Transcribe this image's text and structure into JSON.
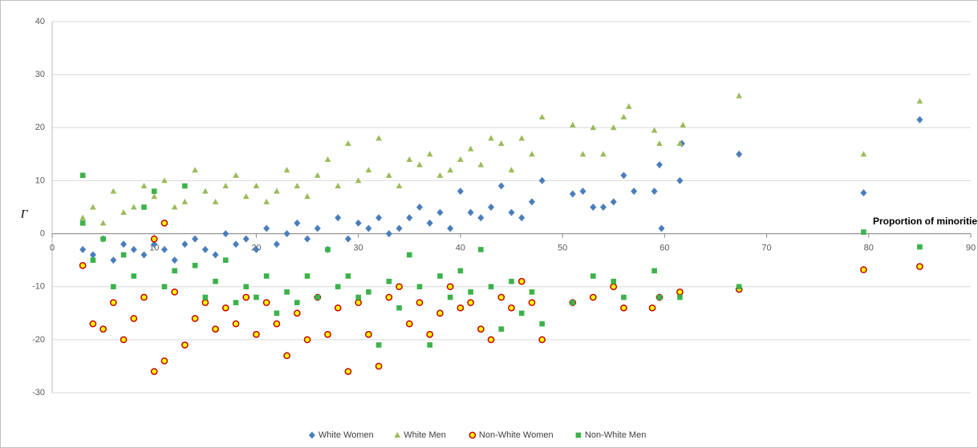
{
  "chart_data": {
    "type": "scatter",
    "y_label": "Γ",
    "x_label": "Proportion of minoritie",
    "xlim": [
      0,
      90
    ],
    "ylim": [
      -30,
      40
    ],
    "xticks": [
      0,
      10,
      20,
      30,
      40,
      50,
      60,
      70,
      80,
      90
    ],
    "yticks": [
      -30,
      -20,
      -10,
      0,
      10,
      20,
      30,
      40
    ],
    "grid": true,
    "legend": "bottom",
    "series": [
      {
        "name": "White Women",
        "color": "#4a7ebb",
        "marker": "diamond",
        "x": [
          3,
          4,
          5,
          6,
          7,
          8,
          9,
          10,
          11,
          12,
          13,
          14,
          15,
          16,
          17,
          18,
          19,
          20,
          21,
          22,
          23,
          24,
          25,
          26,
          27,
          28,
          29,
          30,
          31,
          32,
          33,
          34,
          35,
          36,
          37,
          38,
          39,
          40,
          41,
          42,
          43,
          44,
          45,
          46,
          47,
          48,
          51,
          52,
          53,
          54,
          55,
          56,
          57,
          59,
          59.5,
          59.7,
          61.5,
          61.7,
          67.3,
          79.5,
          85
        ],
        "values": [
          -3,
          -4,
          -1,
          -5,
          -2,
          -3,
          -4,
          -2,
          -3,
          -5,
          -2,
          -1,
          -3,
          -4,
          0,
          -2,
          -1,
          -3,
          1,
          -2,
          0,
          2,
          -1,
          1,
          -3,
          3,
          -1,
          2,
          1,
          3,
          0,
          1,
          3,
          5,
          2,
          4,
          1,
          8,
          4,
          3,
          5,
          9,
          4,
          3,
          6,
          10,
          7.5,
          8,
          5,
          5,
          6,
          11,
          8,
          8,
          13,
          1,
          10,
          17,
          15,
          7.7,
          21.5
        ]
      },
      {
        "name": "White Men",
        "color": "#9bbb59",
        "marker": "triangle",
        "x": [
          3,
          4,
          5,
          6,
          7,
          8,
          9,
          10,
          11,
          12,
          13,
          14,
          15,
          16,
          17,
          18,
          19,
          20,
          21,
          22,
          23,
          24,
          25,
          26,
          27,
          28,
          29,
          30,
          31,
          32,
          33,
          34,
          35,
          36,
          37,
          38,
          39,
          40,
          41,
          42,
          43,
          44,
          45,
          46,
          47,
          48,
          51,
          52,
          53,
          54,
          55,
          56,
          56.5,
          59,
          59.5,
          61.5,
          61.8,
          67.3,
          79.5,
          85
        ],
        "values": [
          3,
          5,
          2,
          8,
          4,
          5,
          9,
          7,
          10,
          5,
          6,
          12,
          8,
          6,
          9,
          11,
          7,
          9,
          6,
          8,
          12,
          9,
          7,
          11,
          14,
          9,
          17,
          10,
          12,
          18,
          11,
          9,
          14,
          13,
          15,
          11,
          12,
          14,
          16,
          13,
          18,
          17,
          12,
          18,
          15,
          22,
          20.5,
          15,
          20,
          15,
          20,
          22,
          24,
          19.5,
          17,
          17,
          20.5,
          26,
          15,
          25
        ]
      },
      {
        "name": "Non-White Women",
        "color": "#ffff00",
        "stroke": "#c00000",
        "marker": "circle",
        "x": [
          3,
          4,
          5,
          6,
          7,
          8,
          9,
          10,
          10,
          11,
          11,
          12,
          13,
          14,
          15,
          16,
          17,
          18,
          19,
          20,
          21,
          22,
          23,
          24,
          25,
          26,
          27,
          28,
          29,
          30,
          31,
          32,
          33,
          34,
          35,
          36,
          37,
          38,
          39,
          40,
          41,
          42,
          43,
          44,
          45,
          46,
          47,
          48,
          51,
          53,
          55,
          56,
          58.8,
          59.5,
          61.5,
          67.3,
          79.5,
          85
        ],
        "values": [
          -6,
          -17,
          -18,
          -13,
          -20,
          -16,
          -12,
          -26,
          -1,
          -24,
          2,
          -11,
          -21,
          -16,
          -13,
          -18,
          -14,
          -17,
          -12,
          -19,
          -13,
          -17,
          -23,
          -15,
          -20,
          -12,
          -19,
          -14,
          -26,
          -13,
          -19,
          -25,
          -12,
          -10,
          -17,
          -13,
          -19,
          -15,
          -10,
          -14,
          -13,
          -18,
          -20,
          -12,
          -14,
          -9,
          -13,
          -20,
          -13,
          -12,
          -10,
          -14,
          -14,
          -12,
          -11,
          -10.5,
          -6.8,
          -6.2
        ]
      },
      {
        "name": "Non-White Men",
        "color": "#3cb34a",
        "marker": "square",
        "x": [
          3,
          3,
          4,
          5,
          6,
          7,
          8,
          9,
          10,
          11,
          12,
          13,
          14,
          15,
          16,
          17,
          18,
          19,
          20,
          21,
          22,
          23,
          24,
          25,
          26,
          27,
          28,
          29,
          30,
          31,
          32,
          33,
          34,
          35,
          36,
          37,
          38,
          39,
          40,
          41,
          42,
          43,
          44,
          45,
          46,
          47,
          48,
          51,
          53,
          55,
          56,
          59,
          59.5,
          61.5,
          67.3,
          79.5,
          85
        ],
        "values": [
          11,
          2,
          -5,
          -1,
          -10,
          -4,
          -8,
          5,
          8,
          -10,
          -7,
          9,
          -6,
          -12,
          -9,
          -5,
          -13,
          -10,
          -12,
          -8,
          -15,
          -11,
          -13,
          -8,
          -12,
          -3,
          -10,
          -8,
          -12,
          -11,
          -21,
          -9,
          -14,
          -4,
          -10,
          -21,
          -8,
          -12,
          -7,
          -11,
          -3,
          -10,
          -18,
          -9,
          -15,
          -11,
          -17,
          -13,
          -8,
          -9,
          -12,
          -7,
          -12,
          -12,
          -10,
          0.3,
          -2.5
        ]
      }
    ]
  }
}
